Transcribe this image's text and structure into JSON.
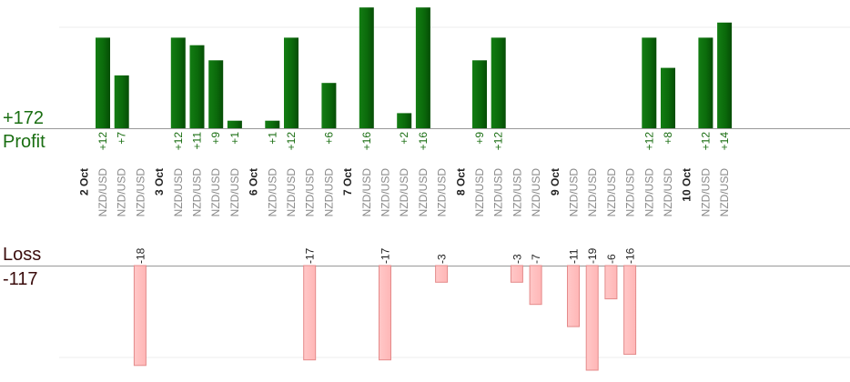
{
  "summary": {
    "profit_total": "+172",
    "profit_label": "Profit",
    "loss_label": "Loss",
    "loss_total": "-117"
  },
  "colors": {
    "profit_bar": "#0b6a0b",
    "profit_text": "#1a6e12",
    "loss_fill": "#ffb6b6",
    "loss_stroke": "#e48a8a",
    "loss_text": "#222222",
    "axis_text": "#888888",
    "date_text": "#222222",
    "grid": "#eeeeee",
    "axis_line": "#999999"
  },
  "chart_data": {
    "type": "bar",
    "symbol": "NZD/USD",
    "day_labels": [
      "2 Oct",
      "3 Oct",
      "6 Oct",
      "7 Oct",
      "8 Oct",
      "9 Oct",
      "10 Oct"
    ],
    "columns": [
      {
        "day": "2 Oct",
        "value": 12
      },
      {
        "day": "2 Oct",
        "value": 7
      },
      {
        "day": "2 Oct",
        "value": -18
      },
      {
        "day": "3 Oct",
        "value": 12
      },
      {
        "day": "3 Oct",
        "value": 11
      },
      {
        "day": "3 Oct",
        "value": 9
      },
      {
        "day": "3 Oct",
        "value": 1
      },
      {
        "day": "6 Oct",
        "value": 1
      },
      {
        "day": "6 Oct",
        "value": 12
      },
      {
        "day": "6 Oct",
        "value": -17
      },
      {
        "day": "6 Oct",
        "value": 6
      },
      {
        "day": "7 Oct",
        "value": 16
      },
      {
        "day": "7 Oct",
        "value": -17
      },
      {
        "day": "7 Oct",
        "value": 2
      },
      {
        "day": "7 Oct",
        "value": 16
      },
      {
        "day": "7 Oct",
        "value": -3
      },
      {
        "day": "8 Oct",
        "value": 9
      },
      {
        "day": "8 Oct",
        "value": 12
      },
      {
        "day": "8 Oct",
        "value": -3
      },
      {
        "day": "8 Oct",
        "value": -7
      },
      {
        "day": "9 Oct",
        "value": -11
      },
      {
        "day": "9 Oct",
        "value": -19
      },
      {
        "day": "9 Oct",
        "value": -6
      },
      {
        "day": "9 Oct",
        "value": -16
      },
      {
        "day": "9 Oct",
        "value": 12
      },
      {
        "day": "9 Oct",
        "value": 8
      },
      {
        "day": "10 Oct",
        "value": 12
      },
      {
        "day": "10 Oct",
        "value": 14
      }
    ],
    "grid": true,
    "legend": "none"
  }
}
